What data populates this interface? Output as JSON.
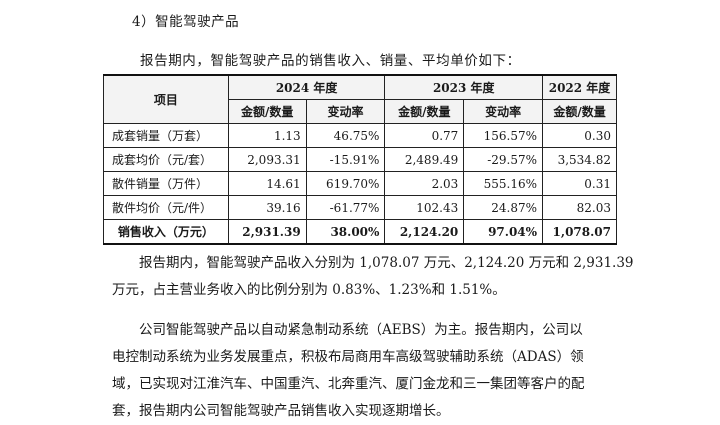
{
  "section_title": "4）智能驾驶产品",
  "intro": "报告期内，智能驾驶产品的销售收入、销量、平均单价如下：",
  "table": {
    "header_item": "项目",
    "years": [
      "2024 年度",
      "2023 年度",
      "2022 年度"
    ],
    "subheaders": [
      "金额/数量",
      "变动率",
      "金额/数量",
      "变动率",
      "金额/数量"
    ],
    "rows": [
      {
        "label": "成套销量（万套）",
        "cells": [
          "1.13",
          "46.75%",
          "0.77",
          "156.57%",
          "0.30"
        ]
      },
      {
        "label": "成套均价（元/套）",
        "cells": [
          "2,093.31",
          "-15.91%",
          "2,489.49",
          "-29.57%",
          "3,534.82"
        ]
      },
      {
        "label": "散件销量（万件）",
        "cells": [
          "14.61",
          "619.70%",
          "2.03",
          "555.16%",
          "0.31"
        ]
      },
      {
        "label": "散件均价（元/件）",
        "cells": [
          "39.16",
          "-61.77%",
          "102.43",
          "24.87%",
          "82.03"
        ]
      },
      {
        "label": "销售收入（万元）",
        "cells": [
          "2,931.39",
          "38.00%",
          "2,124.20",
          "97.04%",
          "1,078.07"
        ]
      }
    ]
  },
  "paragraph1": [
    "报告期内，智能驾驶产品收入分别为 1,078.07 万元、2,124.20 万元和 2,931.39",
    "万元，占主营业务收入的比例分别为 0.83%、1.23%和 1.51%。"
  ],
  "paragraph2": [
    "公司智能驾驶产品以自动紧急制动系统（AEBS）为主。报告期内，公司以",
    "电控制动系统为业务发展重点，积极布局商用车高级驾驶辅助系统（ADAS）领",
    "域，已实现对江淮汽车、中国重汽、北奔重汽、厦门金龙和三一集团等客户的配",
    "套，报告期内公司智能驾驶产品销售收入实现逐期增长。"
  ]
}
